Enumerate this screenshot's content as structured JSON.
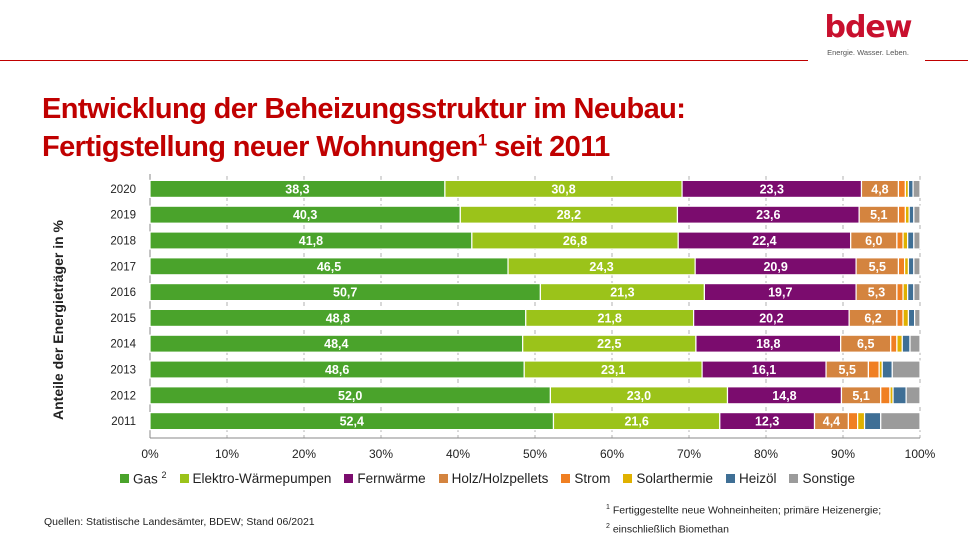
{
  "header": {
    "logo_text": "bdew",
    "logo_tagline": "Energie. Wasser. Leben.",
    "title_line1": "Entwicklung der Beheizungsstruktur im Neubau:",
    "title_line2_pre": "Fertigstellung neuer Wohnungen",
    "title_line2_sup": "1",
    "title_line2_post": " seit 2011",
    "brand_color": "#c00000"
  },
  "chart_data": {
    "type": "bar",
    "orientation": "horizontal",
    "stacked": true,
    "title": "Entwicklung der Beheizungsstruktur im Neubau: Fertigstellung neuer Wohnungen seit 2011",
    "ylabel": "Anteile der Energieträger in %",
    "xlabel": "",
    "xlim": [
      0,
      100
    ],
    "x_ticks": [
      "0%",
      "10%",
      "20%",
      "30%",
      "40%",
      "50%",
      "60%",
      "70%",
      "80%",
      "90%",
      "100%"
    ],
    "grid": "vertical dashed",
    "legend_position": "bottom",
    "categories": [
      "2020",
      "2019",
      "2018",
      "2017",
      "2016",
      "2015",
      "2014",
      "2013",
      "2012",
      "2011"
    ],
    "series": [
      {
        "name": "Gas",
        "sup": "2",
        "color": "#4aa32b",
        "labeled": true,
        "values": [
          38.3,
          40.3,
          41.8,
          46.5,
          50.7,
          48.8,
          48.4,
          48.6,
          52.0,
          52.4
        ],
        "labels": [
          "38,3",
          "40,3",
          "41,8",
          "46,5",
          "50,7",
          "48,8",
          "48,4",
          "48,6",
          "52,0",
          "52,4"
        ]
      },
      {
        "name": "Elektro-Wärmepumpen",
        "color": "#9bc31a",
        "labeled": true,
        "values": [
          30.8,
          28.2,
          26.8,
          24.3,
          21.3,
          21.8,
          22.5,
          23.1,
          23.0,
          21.6
        ],
        "labels": [
          "30,8",
          "28,2",
          "26,8",
          "24,3",
          "21,3",
          "21,8",
          "22,5",
          "23,1",
          "23,0",
          "21,6"
        ]
      },
      {
        "name": "Fernwärme",
        "color": "#7b0c6e",
        "labeled": true,
        "values": [
          23.3,
          23.6,
          22.4,
          20.9,
          19.7,
          20.2,
          18.8,
          16.1,
          14.8,
          12.3
        ],
        "labels": [
          "23,3",
          "23,6",
          "22,4",
          "20,9",
          "19,7",
          "20,2",
          "18,8",
          "16,1",
          "14,8",
          "12,3"
        ]
      },
      {
        "name": "Holz/Holzpellets",
        "color": "#d4843f",
        "labeled": true,
        "values": [
          4.8,
          5.1,
          6.0,
          5.5,
          5.3,
          6.2,
          6.5,
          5.5,
          5.1,
          4.4
        ],
        "labels": [
          "4,8",
          "5,1",
          "6,0",
          "5,5",
          "5,3",
          "6,2",
          "6,5",
          "5,5",
          "5,1",
          "4,4"
        ]
      },
      {
        "name": "Strom",
        "color": "#f07f22",
        "labeled": false,
        "values": [
          0.9,
          0.9,
          0.8,
          0.8,
          0.8,
          0.8,
          0.8,
          1.4,
          1.2,
          1.2
        ]
      },
      {
        "name": "Solarthermie",
        "color": "#e0b100",
        "labeled": false,
        "values": [
          0.4,
          0.5,
          0.6,
          0.5,
          0.6,
          0.7,
          0.7,
          0.4,
          0.4,
          0.9
        ]
      },
      {
        "name": "Heizöl",
        "color": "#3f6f95",
        "labeled": false,
        "values": [
          0.6,
          0.6,
          0.8,
          0.7,
          0.8,
          0.8,
          1.0,
          1.3,
          1.7,
          2.1
        ]
      },
      {
        "name": "Sonstige",
        "color": "#9b9b9b",
        "labeled": false,
        "values": [
          0.9,
          0.8,
          0.8,
          0.8,
          0.8,
          0.7,
          1.3,
          3.6,
          1.8,
          5.1
        ]
      }
    ]
  },
  "footer": {
    "source": "Quellen:  Statistische Landesämter, BDEW;  Stand 06/2021",
    "footnote1_sup": "1",
    "footnote1": " Fertiggestellte neue  Wohneinheiten; primäre Heizenergie;",
    "footnote2_sup": "2",
    "footnote2": " einschließlich Biomethan"
  }
}
